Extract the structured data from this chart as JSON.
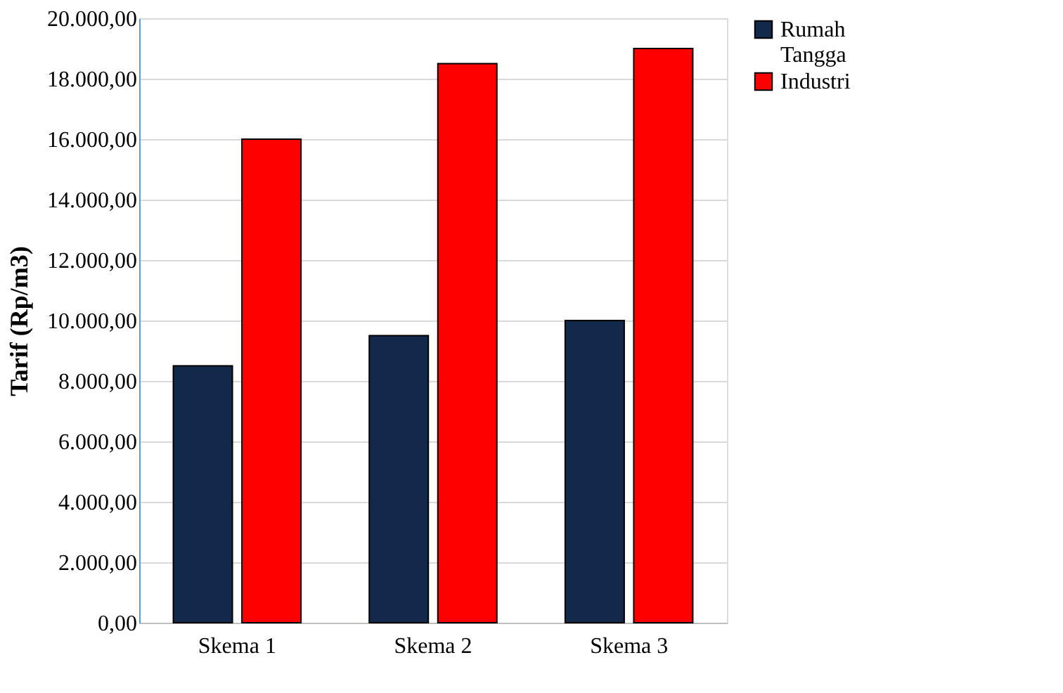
{
  "chart_data": {
    "type": "bar",
    "ylabel": "Tarif (Rp/m3)",
    "categories": [
      "Skema 1",
      "Skema 2",
      "Skema 3"
    ],
    "series": [
      {
        "name": "Rumah Tangga",
        "color": "#13294b",
        "values": [
          8500,
          9500,
          10000
        ]
      },
      {
        "name": "Industri",
        "color": "#ff0000",
        "values": [
          16000,
          18500,
          19000
        ]
      }
    ],
    "ylim": [
      0,
      20000
    ],
    "yticks": [
      {
        "value": 0,
        "label": "0,00"
      },
      {
        "value": 2000,
        "label": "2.000,00"
      },
      {
        "value": 4000,
        "label": "4.000,00"
      },
      {
        "value": 6000,
        "label": "6.000,00"
      },
      {
        "value": 8000,
        "label": "8.000,00"
      },
      {
        "value": 10000,
        "label": "10.000,00"
      },
      {
        "value": 12000,
        "label": "12.000,00"
      },
      {
        "value": 14000,
        "label": "14.000,00"
      },
      {
        "value": 16000,
        "label": "16.000,00"
      },
      {
        "value": 18000,
        "label": "18.000,00"
      },
      {
        "value": 20000,
        "label": "20.000,00"
      }
    ],
    "grid": "y",
    "legend": "right"
  }
}
